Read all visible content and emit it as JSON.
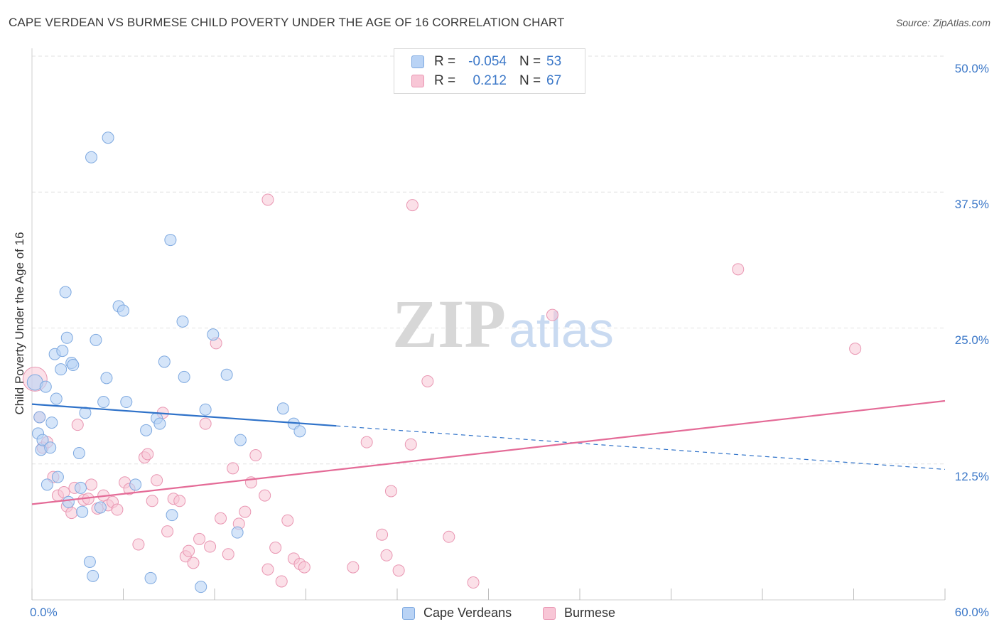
{
  "title": "CAPE VERDEAN VS BURMESE CHILD POVERTY UNDER THE AGE OF 16 CORRELATION CHART",
  "source": "Source: ZipAtlas.com",
  "watermark": {
    "zip": "ZIP",
    "atlas": "atlas"
  },
  "legend": {
    "blue": {
      "r_label": "R =",
      "r_value": "-0.054",
      "n_label": "N =",
      "n_value": "53"
    },
    "pink": {
      "r_label": "R =",
      "r_value": "0.212",
      "n_label": "N =",
      "n_value": "67"
    }
  },
  "colors": {
    "blue_fill": "#b9d3f5",
    "blue_stroke": "#7ea9e0",
    "blue_line": "#2f72c9",
    "pink_fill": "#f8c6d6",
    "pink_stroke": "#e996b2",
    "pink_line": "#e46b97",
    "accent_text": "#3c78c8"
  },
  "chart_data": {
    "type": "scatter",
    "title": "CAPE VERDEAN VS BURMESE CHILD POVERTY UNDER THE AGE OF 16 CORRELATION CHART",
    "xlabel": "",
    "ylabel": "Child Poverty Under the Age of 16",
    "xlim": [
      0,
      60
    ],
    "ylim": [
      0,
      50
    ],
    "x_tick_labels": [
      "0.0%",
      "60.0%"
    ],
    "y_tick_labels": [
      "12.5%",
      "25.0%",
      "37.5%",
      "50.0%"
    ],
    "y_ticks": [
      12.5,
      25.0,
      37.5,
      50.0
    ],
    "grid": true,
    "legend_position": "bottom-center",
    "series": [
      {
        "name": "Cape Verdeans",
        "color": "#b9d3f5",
        "trend": {
          "x0": 0,
          "y0": 18.0,
          "x1": 20,
          "y1": 16.0,
          "dashed_to_x": 60,
          "dashed_to_y": 12.0
        },
        "points": [
          [
            0.2,
            20.0
          ],
          [
            0.4,
            15.3
          ],
          [
            0.5,
            16.8
          ],
          [
            0.6,
            13.8
          ],
          [
            0.7,
            14.7
          ],
          [
            0.9,
            19.6
          ],
          [
            1.0,
            10.6
          ],
          [
            1.2,
            14.0
          ],
          [
            1.3,
            16.3
          ],
          [
            1.5,
            22.6
          ],
          [
            1.6,
            18.5
          ],
          [
            1.7,
            11.3
          ],
          [
            1.9,
            21.2
          ],
          [
            2.0,
            22.9
          ],
          [
            2.2,
            28.3
          ],
          [
            2.3,
            24.1
          ],
          [
            2.4,
            9.0
          ],
          [
            2.6,
            21.8
          ],
          [
            2.7,
            21.6
          ],
          [
            3.1,
            13.5
          ],
          [
            3.2,
            10.3
          ],
          [
            3.3,
            8.1
          ],
          [
            3.5,
            17.2
          ],
          [
            3.8,
            3.5
          ],
          [
            3.9,
            40.7
          ],
          [
            4.0,
            2.2
          ],
          [
            4.2,
            23.9
          ],
          [
            4.5,
            8.5
          ],
          [
            4.7,
            18.2
          ],
          [
            4.9,
            20.4
          ],
          [
            5.0,
            42.5
          ],
          [
            5.7,
            27.0
          ],
          [
            6.0,
            26.6
          ],
          [
            6.2,
            18.2
          ],
          [
            6.8,
            10.6
          ],
          [
            7.5,
            15.6
          ],
          [
            7.8,
            2.0
          ],
          [
            8.2,
            16.7
          ],
          [
            8.4,
            16.2
          ],
          [
            8.7,
            21.9
          ],
          [
            9.2,
            7.8
          ],
          [
            9.1,
            33.1
          ],
          [
            9.9,
            25.6
          ],
          [
            10.0,
            20.5
          ],
          [
            11.1,
            1.2
          ],
          [
            11.4,
            17.5
          ],
          [
            11.9,
            24.4
          ],
          [
            12.8,
            20.7
          ],
          [
            13.5,
            6.2
          ],
          [
            13.7,
            14.7
          ],
          [
            16.5,
            17.6
          ],
          [
            17.2,
            16.2
          ],
          [
            17.6,
            15.5
          ]
        ]
      },
      {
        "name": "Burmese",
        "color": "#f8c6d6",
        "trend": {
          "x0": 0,
          "y0": 8.8,
          "x1": 60,
          "y1": 18.3
        },
        "points": [
          [
            0.2,
            20.3
          ],
          [
            0.5,
            16.8
          ],
          [
            0.7,
            14.0
          ],
          [
            1.0,
            14.5
          ],
          [
            1.4,
            11.3
          ],
          [
            1.7,
            9.6
          ],
          [
            2.1,
            9.9
          ],
          [
            2.3,
            8.6
          ],
          [
            2.6,
            8.0
          ],
          [
            2.8,
            10.3
          ],
          [
            3.0,
            16.1
          ],
          [
            3.4,
            9.2
          ],
          [
            3.7,
            9.3
          ],
          [
            3.9,
            10.6
          ],
          [
            4.3,
            8.4
          ],
          [
            4.7,
            9.6
          ],
          [
            5.0,
            8.7
          ],
          [
            5.3,
            9.0
          ],
          [
            5.6,
            8.3
          ],
          [
            6.1,
            10.8
          ],
          [
            6.4,
            10.2
          ],
          [
            7.0,
            5.1
          ],
          [
            7.4,
            13.1
          ],
          [
            7.6,
            13.4
          ],
          [
            7.9,
            9.1
          ],
          [
            8.2,
            11.0
          ],
          [
            8.6,
            17.2
          ],
          [
            8.9,
            6.3
          ],
          [
            9.3,
            9.3
          ],
          [
            9.7,
            9.1
          ],
          [
            10.1,
            4.0
          ],
          [
            10.3,
            4.5
          ],
          [
            10.6,
            3.4
          ],
          [
            11.0,
            5.6
          ],
          [
            11.4,
            16.2
          ],
          [
            11.7,
            4.9
          ],
          [
            12.1,
            23.6
          ],
          [
            12.4,
            7.5
          ],
          [
            12.9,
            4.2
          ],
          [
            13.2,
            12.1
          ],
          [
            13.6,
            7.0
          ],
          [
            14.0,
            8.1
          ],
          [
            14.4,
            10.8
          ],
          [
            14.7,
            13.3
          ],
          [
            15.3,
            9.6
          ],
          [
            15.5,
            2.8
          ],
          [
            15.5,
            36.8
          ],
          [
            16.0,
            4.8
          ],
          [
            16.4,
            1.7
          ],
          [
            16.8,
            7.3
          ],
          [
            17.2,
            3.8
          ],
          [
            17.6,
            3.3
          ],
          [
            17.9,
            3.0
          ],
          [
            21.1,
            3.0
          ],
          [
            22.0,
            14.5
          ],
          [
            23.3,
            4.1
          ],
          [
            23.6,
            10.0
          ],
          [
            24.1,
            2.7
          ],
          [
            24.9,
            14.3
          ],
          [
            25.0,
            36.3
          ],
          [
            26.0,
            20.1
          ],
          [
            27.4,
            5.8
          ],
          [
            29.0,
            1.6
          ],
          [
            34.2,
            26.2
          ],
          [
            46.4,
            30.4
          ],
          [
            54.1,
            23.1
          ],
          [
            23.0,
            6.0
          ]
        ]
      }
    ]
  },
  "bottom_legend": {
    "blue_label": "Cape Verdeans",
    "pink_label": "Burmese"
  },
  "axis": {
    "x_min_label": "0.0%",
    "x_max_label": "60.0%",
    "y_labels": [
      "12.5%",
      "25.0%",
      "37.5%",
      "50.0%"
    ]
  },
  "ylabel": "Child Poverty Under the Age of 16"
}
